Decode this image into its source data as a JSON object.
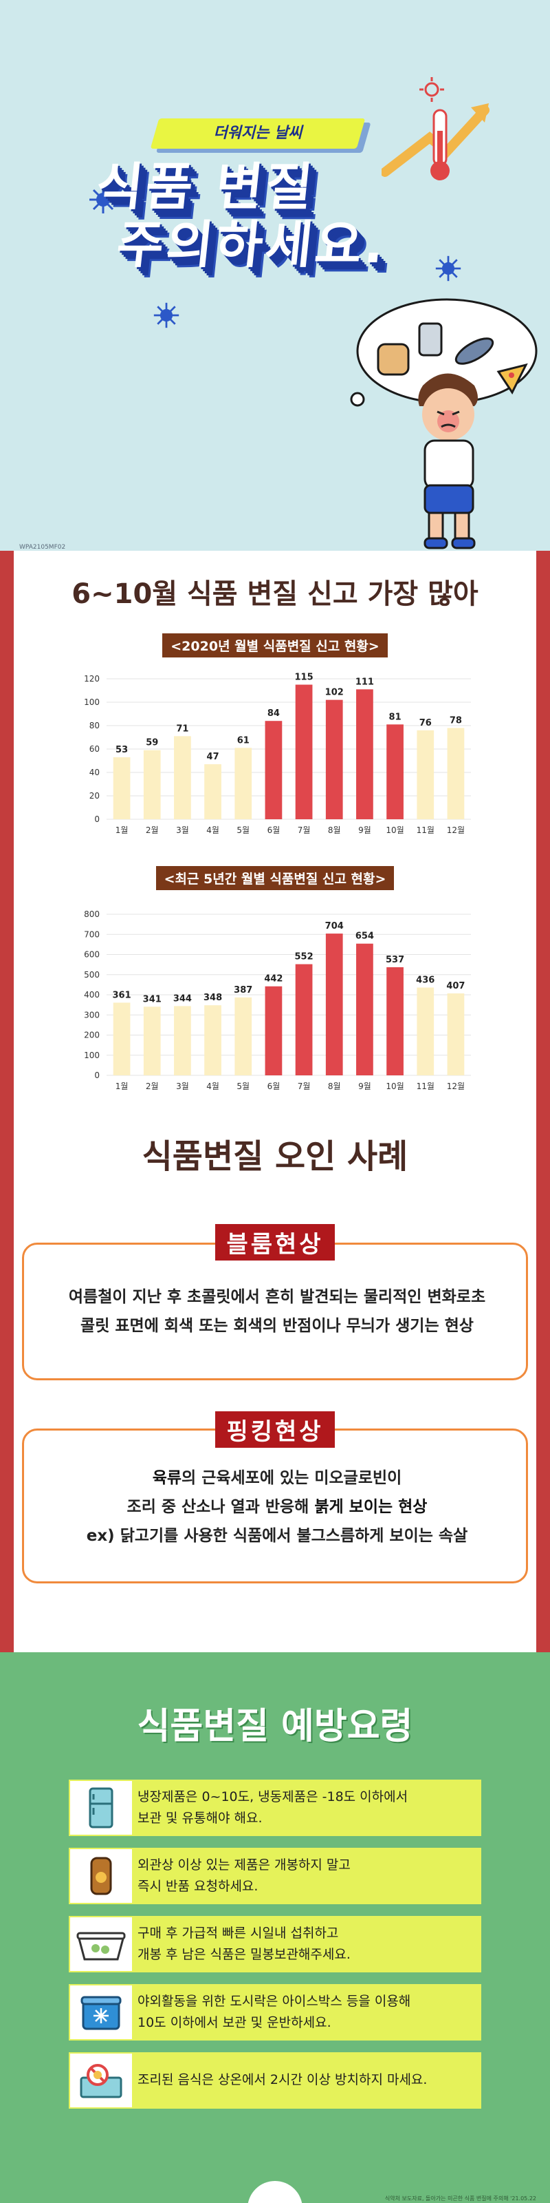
{
  "hero": {
    "ribbon": "더워지는 날씨",
    "title_line1": "식품 변질",
    "title_line2": "주의하세요.",
    "code": "WPA2105MF02"
  },
  "section1": {
    "title": "6~10월 식품 변질 신고 가장 많아"
  },
  "chart_data": [
    {
      "type": "bar",
      "title": "<2020년 월별 식품변질 신고 현황>",
      "categories": [
        "1월",
        "2월",
        "3월",
        "4월",
        "5월",
        "6월",
        "7월",
        "8월",
        "9월",
        "10월",
        "11월",
        "12월"
      ],
      "values": [
        53,
        59,
        71,
        47,
        61,
        84,
        115,
        102,
        111,
        81,
        76,
        78
      ],
      "highlight": [
        false,
        false,
        false,
        false,
        false,
        true,
        true,
        true,
        true,
        true,
        false,
        false
      ],
      "ylim": [
        0,
        120
      ],
      "yticks": [
        0,
        20,
        40,
        60,
        80,
        100,
        120
      ],
      "grid": true,
      "colors": {
        "normal": "#fcefc2",
        "highlight": "#e0474c"
      }
    },
    {
      "type": "bar",
      "title": "<최근 5년간 월별 식품변질 신고 현황>",
      "categories": [
        "1월",
        "2월",
        "3월",
        "4월",
        "5월",
        "6월",
        "7월",
        "8월",
        "9월",
        "10월",
        "11월",
        "12월"
      ],
      "values": [
        361,
        341,
        344,
        348,
        387,
        442,
        552,
        704,
        654,
        537,
        436,
        407
      ],
      "highlight": [
        false,
        false,
        false,
        false,
        false,
        true,
        true,
        true,
        true,
        true,
        false,
        false
      ],
      "ylim": [
        0,
        800
      ],
      "yticks": [
        0,
        100,
        200,
        300,
        400,
        500,
        600,
        700,
        800
      ],
      "grid": true,
      "colors": {
        "normal": "#fcefc2",
        "highlight": "#e0474c"
      }
    }
  ],
  "section2": {
    "title": "식품변질 오인 사례",
    "case1": {
      "tag": "블룸현상",
      "line1": "여름철이 지난 후 초콜릿에서 흔히 발견되는 물리적인 변화로초",
      "line2": "콜릿 표면에 회색 또는 회색의 반점이나  무늬가 생기는 현상"
    },
    "case2": {
      "tag": "핑킹현상",
      "line1_bold": "육류",
      "line1_rest": "의 근육세포에 있는 미오글로빈이",
      "line2_pre": "조리 중 산소나 열과 반응해 ",
      "line2_bold": "붉게 보이는 현상",
      "line3": "ex) 닭고기를 사용한 식품에서 불그스름하게 보이는 속살"
    }
  },
  "section3": {
    "title": "식품변질 예방요령",
    "tips": [
      {
        "icon": "fridge-icon",
        "line1": "냉장제품은 0~10도, 냉동제품은 -18도 이하에서",
        "line2": "보관 및 유통해야 해요."
      },
      {
        "icon": "swollen-can-icon",
        "line1": "외관상 이상 있는 제품은 개봉하지 말고",
        "line2": "즉시 반품 요청하세요."
      },
      {
        "icon": "container-icon",
        "line1": "구매 후 가급적 빠른 시일내 섭취하고",
        "line2": "개봉 후 남은 식품은 밀봉보관해주세요."
      },
      {
        "icon": "icebox-icon",
        "line1": "야외활동을 위한 도시락은 아이스박스 등을 이용해",
        "line2": "10도 이하에서 보관 및 운반하세요."
      },
      {
        "icon": "no-sun-food-icon",
        "line1": "조리된 음식은 상온에서 2시간 이상 방치하지 마세요.",
        "line2": ""
      }
    ],
    "source": "식약처 보도자료, 돌아가는 미곤한 식품 변질에 주의해 '21.05.22"
  },
  "colors": {
    "hero_bg": "#cfe9ec",
    "frame_red": "#c33d3d",
    "green_bg": "#6cba7b",
    "tip_bg": "#e5f25a",
    "accent_orange": "#f08a3c"
  }
}
